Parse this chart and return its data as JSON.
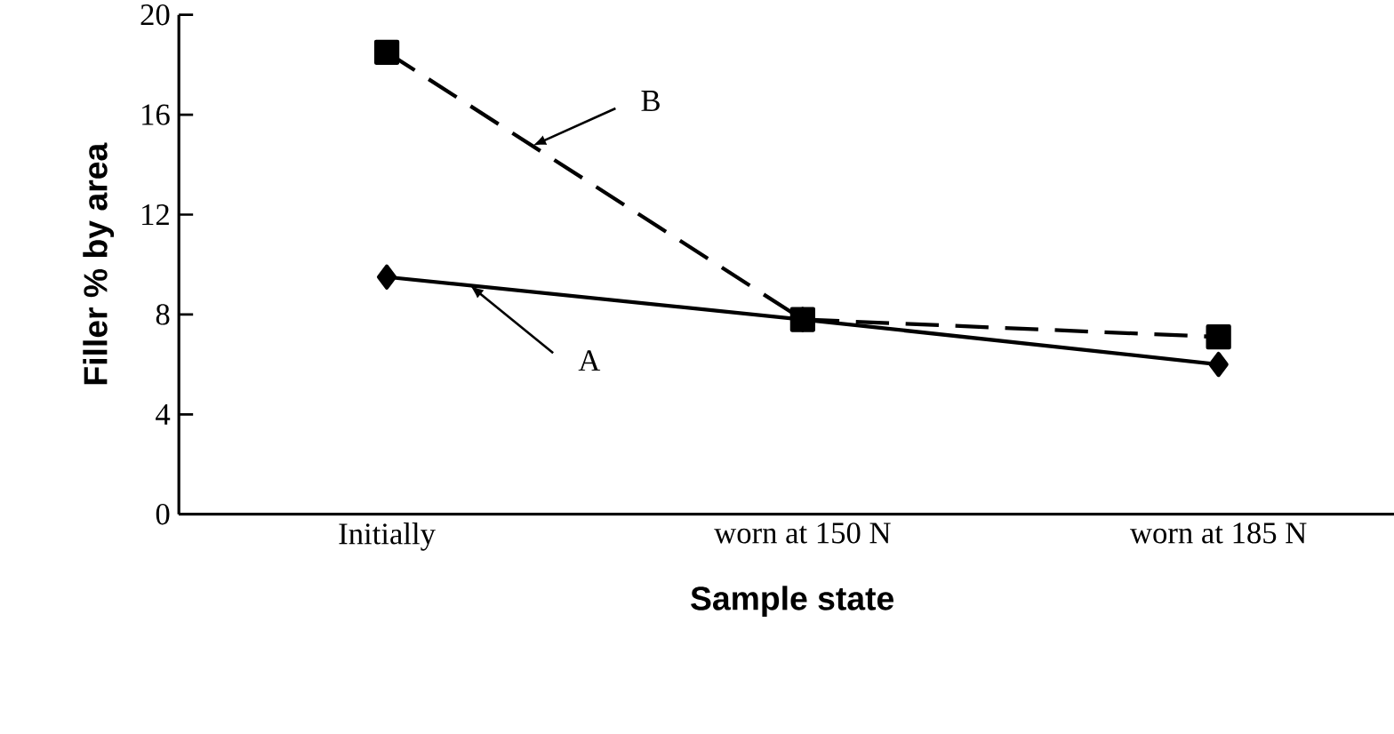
{
  "chart_data": {
    "type": "line",
    "xlabel": "Sample state",
    "ylabel": "Filler % by area",
    "categories": [
      "Initially",
      "worn at 150 N",
      "worn at 185 N"
    ],
    "series": [
      {
        "name": "A",
        "color": "#000000",
        "values": [
          9.5,
          7.8,
          6.0
        ],
        "marker": "diamond",
        "line_style": "solid"
      },
      {
        "name": "B",
        "color": "#000000",
        "values": [
          18.5,
          7.8,
          7.1
        ],
        "marker": "square",
        "line_style": "dashed"
      }
    ],
    "ylim": [
      0,
      20
    ],
    "yticks": [
      0,
      4,
      8,
      12,
      16,
      20
    ],
    "grid": false,
    "legend": false
  }
}
